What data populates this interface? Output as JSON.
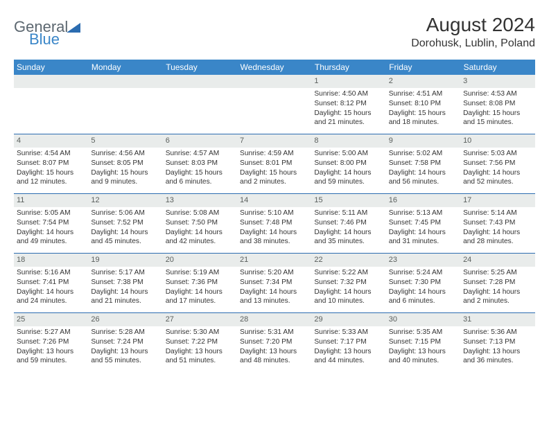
{
  "branding": {
    "part1": "General",
    "part2": "Blue"
  },
  "header": {
    "month_year": "August 2024",
    "location": "Dorohusk, Lublin, Poland"
  },
  "colors": {
    "header_bg": "#3a86c8",
    "date_strip_bg": "#e9eceb",
    "row_divider": "#2b6cb0",
    "logo_gray": "#5c6770",
    "logo_blue": "#3a86c8"
  },
  "weekdays": [
    "Sunday",
    "Monday",
    "Tuesday",
    "Wednesday",
    "Thursday",
    "Friday",
    "Saturday"
  ],
  "weeks": [
    [
      null,
      null,
      null,
      null,
      {
        "n": "1",
        "sr": "4:50 AM",
        "ss": "8:12 PM",
        "dl": "15 hours and 21 minutes."
      },
      {
        "n": "2",
        "sr": "4:51 AM",
        "ss": "8:10 PM",
        "dl": "15 hours and 18 minutes."
      },
      {
        "n": "3",
        "sr": "4:53 AM",
        "ss": "8:08 PM",
        "dl": "15 hours and 15 minutes."
      }
    ],
    [
      {
        "n": "4",
        "sr": "4:54 AM",
        "ss": "8:07 PM",
        "dl": "15 hours and 12 minutes."
      },
      {
        "n": "5",
        "sr": "4:56 AM",
        "ss": "8:05 PM",
        "dl": "15 hours and 9 minutes."
      },
      {
        "n": "6",
        "sr": "4:57 AM",
        "ss": "8:03 PM",
        "dl": "15 hours and 6 minutes."
      },
      {
        "n": "7",
        "sr": "4:59 AM",
        "ss": "8:01 PM",
        "dl": "15 hours and 2 minutes."
      },
      {
        "n": "8",
        "sr": "5:00 AM",
        "ss": "8:00 PM",
        "dl": "14 hours and 59 minutes."
      },
      {
        "n": "9",
        "sr": "5:02 AM",
        "ss": "7:58 PM",
        "dl": "14 hours and 56 minutes."
      },
      {
        "n": "10",
        "sr": "5:03 AM",
        "ss": "7:56 PM",
        "dl": "14 hours and 52 minutes."
      }
    ],
    [
      {
        "n": "11",
        "sr": "5:05 AM",
        "ss": "7:54 PM",
        "dl": "14 hours and 49 minutes."
      },
      {
        "n": "12",
        "sr": "5:06 AM",
        "ss": "7:52 PM",
        "dl": "14 hours and 45 minutes."
      },
      {
        "n": "13",
        "sr": "5:08 AM",
        "ss": "7:50 PM",
        "dl": "14 hours and 42 minutes."
      },
      {
        "n": "14",
        "sr": "5:10 AM",
        "ss": "7:48 PM",
        "dl": "14 hours and 38 minutes."
      },
      {
        "n": "15",
        "sr": "5:11 AM",
        "ss": "7:46 PM",
        "dl": "14 hours and 35 minutes."
      },
      {
        "n": "16",
        "sr": "5:13 AM",
        "ss": "7:45 PM",
        "dl": "14 hours and 31 minutes."
      },
      {
        "n": "17",
        "sr": "5:14 AM",
        "ss": "7:43 PM",
        "dl": "14 hours and 28 minutes."
      }
    ],
    [
      {
        "n": "18",
        "sr": "5:16 AM",
        "ss": "7:41 PM",
        "dl": "14 hours and 24 minutes."
      },
      {
        "n": "19",
        "sr": "5:17 AM",
        "ss": "7:38 PM",
        "dl": "14 hours and 21 minutes."
      },
      {
        "n": "20",
        "sr": "5:19 AM",
        "ss": "7:36 PM",
        "dl": "14 hours and 17 minutes."
      },
      {
        "n": "21",
        "sr": "5:20 AM",
        "ss": "7:34 PM",
        "dl": "14 hours and 13 minutes."
      },
      {
        "n": "22",
        "sr": "5:22 AM",
        "ss": "7:32 PM",
        "dl": "14 hours and 10 minutes."
      },
      {
        "n": "23",
        "sr": "5:24 AM",
        "ss": "7:30 PM",
        "dl": "14 hours and 6 minutes."
      },
      {
        "n": "24",
        "sr": "5:25 AM",
        "ss": "7:28 PM",
        "dl": "14 hours and 2 minutes."
      }
    ],
    [
      {
        "n": "25",
        "sr": "5:27 AM",
        "ss": "7:26 PM",
        "dl": "13 hours and 59 minutes."
      },
      {
        "n": "26",
        "sr": "5:28 AM",
        "ss": "7:24 PM",
        "dl": "13 hours and 55 minutes."
      },
      {
        "n": "27",
        "sr": "5:30 AM",
        "ss": "7:22 PM",
        "dl": "13 hours and 51 minutes."
      },
      {
        "n": "28",
        "sr": "5:31 AM",
        "ss": "7:20 PM",
        "dl": "13 hours and 48 minutes."
      },
      {
        "n": "29",
        "sr": "5:33 AM",
        "ss": "7:17 PM",
        "dl": "13 hours and 44 minutes."
      },
      {
        "n": "30",
        "sr": "5:35 AM",
        "ss": "7:15 PM",
        "dl": "13 hours and 40 minutes."
      },
      {
        "n": "31",
        "sr": "5:36 AM",
        "ss": "7:13 PM",
        "dl": "13 hours and 36 minutes."
      }
    ]
  ],
  "labels": {
    "sunrise": "Sunrise: ",
    "sunset": "Sunset: ",
    "daylight": "Daylight: "
  }
}
